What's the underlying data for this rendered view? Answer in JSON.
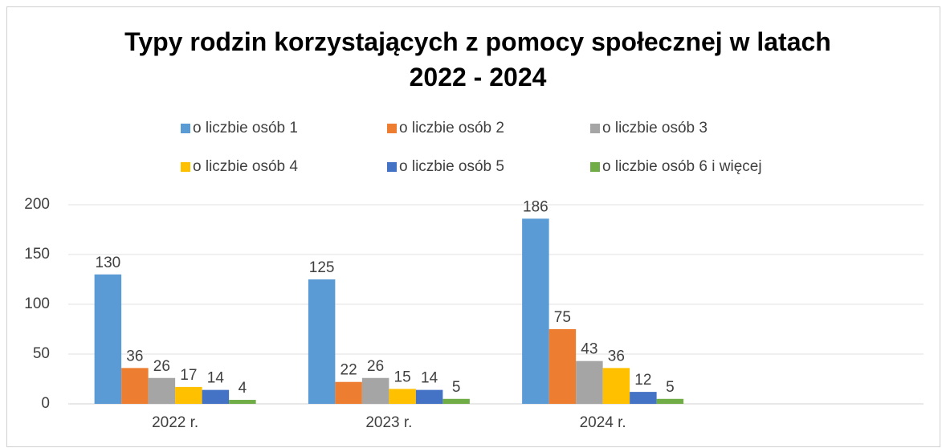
{
  "chart_data": {
    "type": "bar",
    "title": "Typy rodzin korzystających z pomocy społecznej w latach 2022 - 2024",
    "categories": [
      "2022 r.",
      "2023 r.",
      "2024 r.",
      null
    ],
    "series": [
      {
        "name": "o liczbie osób 1",
        "color": "#5b9bd5",
        "values": [
          130,
          125,
          186,
          null
        ]
      },
      {
        "name": "o liczbie osób 2",
        "color": "#ed7d31",
        "values": [
          36,
          22,
          75,
          null
        ]
      },
      {
        "name": "o liczbie osób 3",
        "color": "#a5a5a5",
        "values": [
          26,
          26,
          43,
          null
        ]
      },
      {
        "name": "o liczbie osób 4",
        "color": "#ffc000",
        "values": [
          17,
          15,
          36,
          null
        ]
      },
      {
        "name": "o liczbie osób 5",
        "color": "#4472c4",
        "values": [
          14,
          14,
          12,
          null
        ]
      },
      {
        "name": "o liczbie osób 6 i więcej",
        "color": "#70ad47",
        "values": [
          4,
          5,
          5,
          null
        ]
      }
    ],
    "ylim": [
      0,
      200
    ],
    "yticks": [
      0,
      50,
      100,
      150,
      200
    ],
    "grid": true,
    "legend": "top"
  }
}
